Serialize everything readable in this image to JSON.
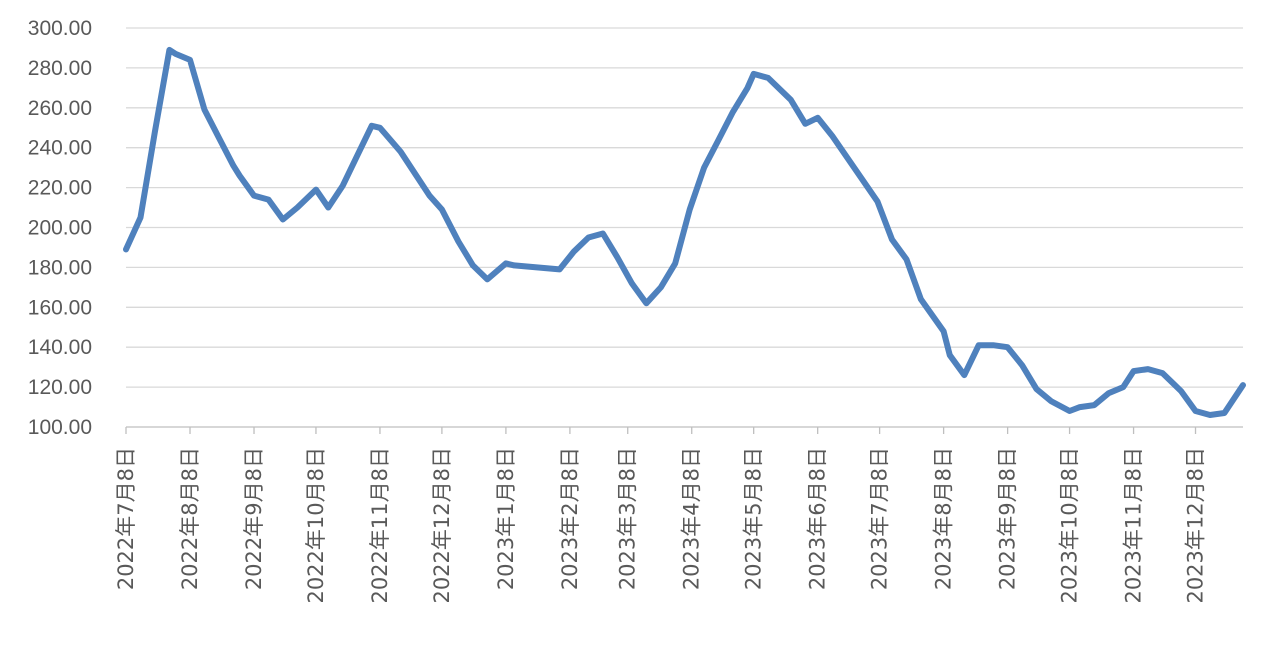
{
  "chart_data": {
    "type": "line",
    "title": "",
    "xlabel": "",
    "ylabel": "",
    "ylim": [
      100,
      300
    ],
    "ytick_step": 20,
    "ytick_labels": [
      "100.00",
      "120.00",
      "140.00",
      "160.00",
      "180.00",
      "200.00",
      "220.00",
      "240.00",
      "260.00",
      "280.00",
      "300.00"
    ],
    "grid": true,
    "legend": "none",
    "x_range": [
      "2022-07-08",
      "2023-12-31"
    ],
    "x_tick_dates": [
      "2022-07-08",
      "2022-08-08",
      "2022-09-08",
      "2022-10-08",
      "2022-11-08",
      "2022-12-08",
      "2023-01-08",
      "2023-02-08",
      "2023-03-08",
      "2023-04-08",
      "2023-05-08",
      "2023-06-08",
      "2023-07-08",
      "2023-08-08",
      "2023-09-08",
      "2023-10-08",
      "2023-11-08",
      "2023-12-08"
    ],
    "x_tick_labels": [
      "2022年7月8日",
      "2022年8月8日",
      "2022年9月8日",
      "2022年10月8日",
      "2022年11月8日",
      "2022年12月8日",
      "2023年1月8日",
      "2023年2月8日",
      "2023年3月8日",
      "2023年4月8日",
      "2023年5月8日",
      "2023年6月8日",
      "2023年7月8日",
      "2023年8月8日",
      "2023年9月8日",
      "2023年10月8日",
      "2023年11月8日",
      "2023年12月8日"
    ],
    "series": [
      {
        "color": "#4f81bd",
        "x": [
          "2022-07-08",
          "2022-07-15",
          "2022-07-22",
          "2022-07-29",
          "2022-08-01",
          "2022-08-08",
          "2022-08-15",
          "2022-08-22",
          "2022-08-29",
          "2022-09-01",
          "2022-09-08",
          "2022-09-15",
          "2022-09-22",
          "2022-09-29",
          "2022-10-08",
          "2022-10-14",
          "2022-10-21",
          "2022-10-28",
          "2022-11-04",
          "2022-11-08",
          "2022-11-18",
          "2022-12-02",
          "2022-12-08",
          "2022-12-16",
          "2022-12-23",
          "2022-12-30",
          "2023-01-08",
          "2023-01-12",
          "2023-02-03",
          "2023-02-10",
          "2023-02-17",
          "2023-02-24",
          "2023-03-03",
          "2023-03-10",
          "2023-03-17",
          "2023-03-24",
          "2023-03-31",
          "2023-04-07",
          "2023-04-14",
          "2023-04-21",
          "2023-04-28",
          "2023-05-05",
          "2023-05-08",
          "2023-05-15",
          "2023-05-26",
          "2023-06-02",
          "2023-06-08",
          "2023-06-15",
          "2023-07-07",
          "2023-07-14",
          "2023-07-21",
          "2023-07-28",
          "2023-08-08",
          "2023-08-11",
          "2023-08-18",
          "2023-08-25",
          "2023-09-01",
          "2023-09-08",
          "2023-09-15",
          "2023-09-22",
          "2023-09-29",
          "2023-10-08",
          "2023-10-13",
          "2023-10-20",
          "2023-10-27",
          "2023-11-03",
          "2023-11-08",
          "2023-11-15",
          "2023-11-22",
          "2023-12-01",
          "2023-12-08",
          "2023-12-15",
          "2023-12-22",
          "2023-12-31"
        ],
        "y": [
          189,
          205,
          248,
          289,
          287,
          284,
          259,
          245,
          231,
          226,
          216,
          214,
          204,
          210,
          219,
          210,
          221,
          236,
          251,
          250,
          238,
          216,
          209,
          193,
          181,
          174,
          182,
          181,
          179,
          188,
          195,
          197,
          185,
          172,
          162,
          170,
          182,
          209,
          230,
          244,
          258,
          270,
          277,
          275,
          264,
          252,
          255,
          246,
          213,
          194,
          184,
          164,
          148,
          136,
          126,
          141,
          141,
          140,
          131,
          119,
          113,
          108,
          110,
          111,
          117,
          120,
          128,
          129,
          127,
          118,
          108,
          106,
          107,
          121
        ]
      }
    ]
  }
}
